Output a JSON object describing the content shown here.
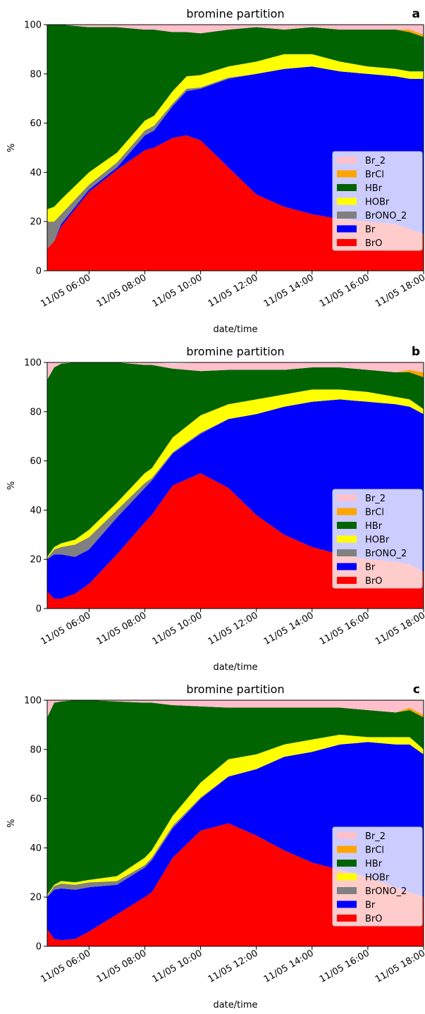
{
  "chart_data": [
    {
      "type": "area",
      "stacked": true,
      "panel_label": "a",
      "title": "bromine partition",
      "xlabel": "date/time",
      "ylabel": "%",
      "ylim": [
        0,
        100
      ],
      "xlim": [
        "11/05 04:30",
        "18:00"
      ],
      "yticks": [
        0,
        20,
        40,
        60,
        80,
        100
      ],
      "xticks": [
        "11/05 06:00",
        "11/05 08:00",
        "11/05 10:00",
        "11/05 12:00",
        "11/05 14:00",
        "11/05 16:00",
        "11/05 18:00"
      ],
      "legend_position": "lower-right",
      "grid": false,
      "x": [
        "04:30",
        "04:45",
        "05:00",
        "06:00",
        "07:00",
        "08:00",
        "08:20",
        "09:00",
        "09:30",
        "10:00",
        "11:00",
        "12:00",
        "13:00",
        "14:00",
        "15:00",
        "16:00",
        "17:00",
        "17:30",
        "18:00"
      ],
      "series": [
        {
          "name": "BrO",
          "color": "#ff0000",
          "values": [
            9,
            12,
            18,
            32,
            41,
            49,
            50,
            54,
            55,
            53,
            42,
            31,
            26,
            23,
            21,
            20,
            19,
            17,
            15
          ]
        },
        {
          "name": "Br",
          "color": "#0000ff",
          "values": [
            0,
            0,
            1,
            1,
            1,
            6,
            7,
            13,
            18,
            21,
            36,
            49,
            56,
            60,
            60,
            60,
            60,
            61,
            63
          ]
        },
        {
          "name": "BrONO_2",
          "color": "#808080",
          "values": [
            11,
            8,
            4,
            2,
            2,
            2,
            2,
            1,
            1,
            0.5,
            0.5,
            0,
            0,
            0,
            0,
            0,
            0,
            0,
            0
          ]
        },
        {
          "name": "HOBr",
          "color": "#ffff00",
          "values": [
            5,
            6,
            6,
            5,
            4,
            4,
            4,
            5,
            5,
            5,
            4.5,
            5,
            6,
            5,
            4,
            3,
            3,
            3,
            3
          ]
        },
        {
          "name": "HBr",
          "color": "#006400",
          "values": [
            75,
            74,
            71,
            59,
            51,
            37,
            35,
            24,
            18,
            17,
            15,
            14,
            10,
            11,
            13,
            15,
            16,
            16,
            14
          ]
        },
        {
          "name": "BrCl",
          "color": "#ffa500",
          "values": [
            0,
            0,
            0,
            0,
            0,
            0,
            0,
            0,
            0,
            0,
            0,
            0,
            0,
            0,
            0,
            0,
            0,
            1,
            1
          ]
        },
        {
          "name": "Br_2",
          "color": "#ffc0cb",
          "values": [
            0,
            0,
            0,
            1,
            1,
            2,
            2,
            3,
            3,
            3.5,
            4,
            1,
            2,
            1,
            2,
            2,
            2,
            2,
            4
          ]
        }
      ]
    },
    {
      "type": "area",
      "stacked": true,
      "panel_label": "b",
      "title": "bromine partition",
      "xlabel": "date/time",
      "ylabel": "%",
      "ylim": [
        0,
        100
      ],
      "yticks": [
        0,
        20,
        40,
        60,
        80,
        100
      ],
      "xticks": [
        "11/05 06:00",
        "11/05 08:00",
        "11/05 10:00",
        "11/05 12:00",
        "11/05 14:00",
        "11/05 16:00",
        "11/05 18:00"
      ],
      "legend_position": "lower-right",
      "grid": false,
      "x": [
        "04:30",
        "04:45",
        "05:00",
        "05:30",
        "06:00",
        "07:00",
        "08:00",
        "08:15",
        "09:00",
        "10:00",
        "11:00",
        "12:00",
        "13:00",
        "14:00",
        "15:00",
        "16:00",
        "17:00",
        "17:30",
        "18:00"
      ],
      "series": [
        {
          "name": "BrO",
          "color": "#ff0000",
          "values": [
            7,
            4,
            4,
            6,
            10,
            22,
            35,
            38,
            50,
            55,
            49,
            38,
            30,
            25,
            22,
            20,
            19,
            18,
            15
          ]
        },
        {
          "name": "Br",
          "color": "#0000ff",
          "values": [
            13,
            18,
            18,
            15,
            14,
            15,
            14,
            14,
            13,
            16,
            28,
            41,
            52,
            59,
            63,
            64,
            64,
            64,
            64
          ]
        },
        {
          "name": "BrONO_2",
          "color": "#808080",
          "values": [
            0.5,
            2,
            3,
            5,
            5,
            3,
            2,
            1,
            0.5,
            0.5,
            0,
            0,
            0,
            0,
            0,
            0,
            0,
            0,
            0
          ]
        },
        {
          "name": "HOBr",
          "color": "#ffff00",
          "values": [
            0.5,
            1,
            1.5,
            2,
            3,
            3,
            4,
            4,
            6,
            7,
            6,
            6,
            5,
            5,
            4,
            4,
            3,
            3,
            2
          ]
        },
        {
          "name": "HBr",
          "color": "#006400",
          "values": [
            72,
            73,
            73,
            72,
            68,
            57,
            44,
            42,
            28,
            18,
            14,
            12,
            10,
            9,
            9,
            9,
            10,
            11,
            13
          ]
        },
        {
          "name": "BrCl",
          "color": "#ffa500",
          "values": [
            0,
            0,
            0,
            0,
            0,
            0,
            0,
            0,
            0,
            0,
            0,
            0,
            0,
            0,
            0,
            0,
            0,
            1,
            2
          ]
        },
        {
          "name": "Br_2",
          "color": "#ffc0cb",
          "values": [
            7,
            2,
            0.5,
            0,
            0,
            0,
            1,
            1,
            2,
            3.5,
            3,
            3,
            3,
            2,
            2,
            3,
            4,
            3,
            4
          ]
        }
      ]
    },
    {
      "type": "area",
      "stacked": true,
      "panel_label": "c",
      "title": "bromine partition",
      "xlabel": "date/time",
      "ylabel": "%",
      "ylim": [
        0,
        100
      ],
      "yticks": [
        0,
        20,
        40,
        60,
        80,
        100
      ],
      "xticks": [
        "11/05 06:00",
        "11/05 08:00",
        "11/05 10:00",
        "11/05 12:00",
        "11/05 14:00",
        "11/05 16:00",
        "11/05 18:00"
      ],
      "legend_position": "lower-right",
      "grid": false,
      "x": [
        "04:30",
        "04:45",
        "05:00",
        "05:30",
        "06:00",
        "07:00",
        "08:00",
        "08:15",
        "09:00",
        "10:00",
        "11:00",
        "12:00",
        "13:00",
        "14:00",
        "15:00",
        "16:00",
        "17:00",
        "17:30",
        "18:00"
      ],
      "series": [
        {
          "name": "BrO",
          "color": "#ff0000",
          "values": [
            7,
            3,
            2.5,
            3,
            6,
            13,
            20,
            22,
            36,
            47,
            50,
            45,
            39,
            34,
            31,
            28,
            24,
            22,
            20
          ]
        },
        {
          "name": "Br",
          "color": "#0000ff",
          "values": [
            13,
            20,
            21,
            20,
            18,
            12,
            12,
            13,
            12,
            13,
            19,
            27,
            38,
            45,
            51,
            55,
            58,
            60,
            58
          ]
        },
        {
          "name": "BrONO_2",
          "color": "#808080",
          "values": [
            0.5,
            1.5,
            2,
            2,
            2,
            1.5,
            1,
            1,
            1,
            0.5,
            0,
            0,
            0,
            0,
            0,
            0,
            0,
            0,
            0
          ]
        },
        {
          "name": "HOBr",
          "color": "#ffff00",
          "values": [
            0.5,
            0.5,
            1,
            1,
            1,
            2,
            3,
            3,
            4,
            6,
            7,
            6,
            5,
            5,
            4,
            2,
            3,
            3,
            2
          ]
        },
        {
          "name": "HBr",
          "color": "#006400",
          "values": [
            72,
            74,
            73,
            74,
            73,
            71,
            63,
            60,
            45,
            31,
            21,
            19,
            15,
            13,
            11,
            11,
            10,
            11,
            13
          ]
        },
        {
          "name": "BrCl",
          "color": "#ffa500",
          "values": [
            0,
            0,
            0,
            0,
            0,
            0,
            0,
            0,
            0,
            0,
            0,
            0,
            0,
            0,
            0,
            0,
            0,
            1,
            1
          ]
        },
        {
          "name": "Br_2",
          "color": "#ffc0cb",
          "values": [
            7,
            1,
            0.5,
            0,
            0,
            0.5,
            1,
            1,
            2,
            2.5,
            3,
            3,
            3,
            3,
            3,
            4,
            5,
            3,
            6
          ]
        }
      ]
    }
  ]
}
